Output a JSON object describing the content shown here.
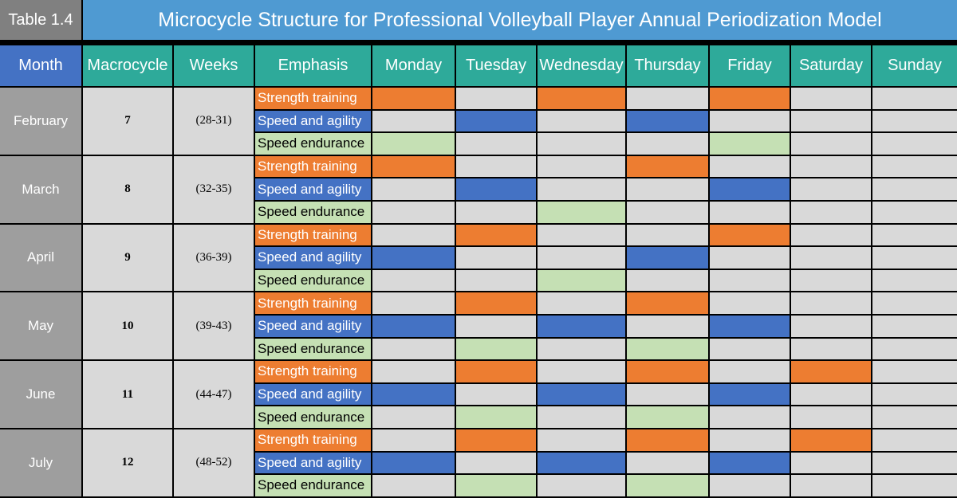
{
  "table_number": "Table 1.4",
  "title": "Microcycle Structure for Professional Volleyball Player Annual Periodization Model",
  "colors": {
    "header_teal": "#2eaa9a",
    "month_header_blue": "#4472c4",
    "title_blue": "#4f9ad2",
    "strength": "#ed7d31",
    "speed_agility": "#4472c4",
    "speed_endurance": "#c5e0b4",
    "empty": "#d9d9d9",
    "month_cell": "#9e9e9e"
  },
  "chart_data": {
    "type": "table",
    "columns": [
      "Month",
      "Macrocycle",
      "Weeks",
      "Emphasis",
      "Monday",
      "Tuesday",
      "Wednesday",
      "Thursday",
      "Friday",
      "Saturday",
      "Sunday"
    ],
    "emphases": [
      "Strength training",
      "Speed and agility",
      "Speed endurance"
    ],
    "rows": [
      {
        "month": "February",
        "macrocycle": "7",
        "weeks": "(28-31)",
        "schedule": {
          "Strength training": [
            "Monday",
            "Wednesday",
            "Friday"
          ],
          "Speed and agility": [
            "Tuesday",
            "Thursday"
          ],
          "Speed endurance": [
            "Monday",
            "Friday"
          ]
        }
      },
      {
        "month": "March",
        "macrocycle": "8",
        "weeks": "(32-35)",
        "schedule": {
          "Strength training": [
            "Monday",
            "Thursday"
          ],
          "Speed and agility": [
            "Tuesday",
            "Friday"
          ],
          "Speed endurance": [
            "Wednesday"
          ]
        }
      },
      {
        "month": "April",
        "macrocycle": "9",
        "weeks": "(36-39)",
        "schedule": {
          "Strength training": [
            "Tuesday",
            "Friday"
          ],
          "Speed and agility": [
            "Monday",
            "Thursday"
          ],
          "Speed endurance": [
            "Wednesday"
          ]
        }
      },
      {
        "month": "May",
        "macrocycle": "10",
        "weeks": "(39-43)",
        "schedule": {
          "Strength training": [
            "Tuesday",
            "Thursday"
          ],
          "Speed and agility": [
            "Monday",
            "Wednesday",
            "Friday"
          ],
          "Speed endurance": [
            "Tuesday",
            "Thursday"
          ]
        }
      },
      {
        "month": "June",
        "macrocycle": "11",
        "weeks": "(44-47)",
        "schedule": {
          "Strength training": [
            "Tuesday",
            "Thursday",
            "Saturday"
          ],
          "Speed and agility": [
            "Monday",
            "Wednesday",
            "Friday"
          ],
          "Speed endurance": [
            "Tuesday",
            "Thursday"
          ]
        }
      },
      {
        "month": "July",
        "macrocycle": "12",
        "weeks": "(48-52)",
        "schedule": {
          "Strength training": [
            "Tuesday",
            "Thursday",
            "Saturday"
          ],
          "Speed and agility": [
            "Monday",
            "Wednesday",
            "Friday"
          ],
          "Speed endurance": [
            "Tuesday",
            "Thursday"
          ]
        }
      }
    ]
  }
}
